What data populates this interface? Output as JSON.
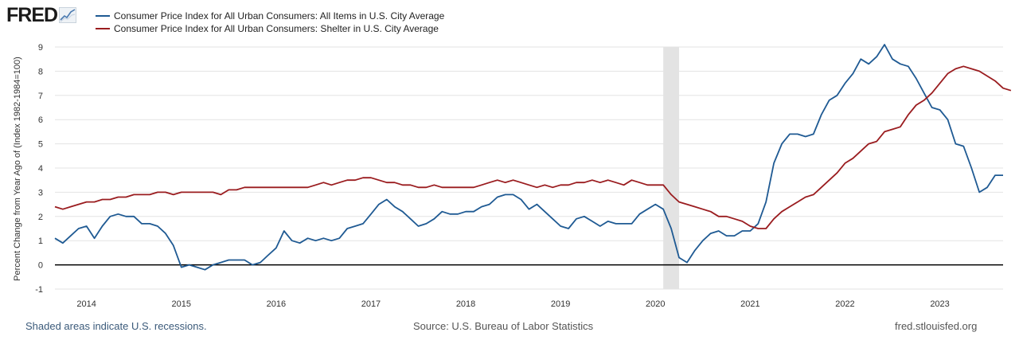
{
  "logo": {
    "text": "FRED"
  },
  "chart_data": {
    "type": "line",
    "title": "",
    "xlabel": "",
    "ylabel": "Percent Change from Year Ago of (Index 1982-1984=100)",
    "ylim": [
      -1,
      9
    ],
    "xlim": [
      2013.667,
      2023.667
    ],
    "yticks": [
      -1,
      0,
      1,
      2,
      3,
      4,
      5,
      6,
      7,
      8,
      9
    ],
    "xticks": [
      2014,
      2015,
      2016,
      2017,
      2018,
      2019,
      2020,
      2021,
      2022,
      2023
    ],
    "xticklabels": [
      "2014",
      "2015",
      "2016",
      "2017",
      "2018",
      "2019",
      "2020",
      "2021",
      "2022",
      "2023"
    ],
    "recession": [
      2020.083,
      2020.25
    ],
    "zero_line": 0,
    "series": [
      {
        "name": "Consumer Price Index for All Urban Consumers: All Items in U.S. City Average",
        "color": "#1f5a93",
        "start": [
          2013,
          9
        ],
        "values": [
          1.1,
          0.9,
          1.2,
          1.5,
          1.6,
          1.1,
          1.6,
          2.0,
          2.1,
          2.0,
          2.0,
          1.7,
          1.7,
          1.6,
          1.3,
          0.8,
          -0.1,
          0.0,
          -0.1,
          -0.2,
          0.0,
          0.1,
          0.2,
          0.2,
          0.2,
          0.0,
          0.1,
          0.4,
          0.7,
          1.4,
          1.0,
          0.9,
          1.1,
          1.0,
          1.1,
          1.0,
          1.1,
          1.5,
          1.6,
          1.7,
          2.1,
          2.5,
          2.7,
          2.4,
          2.2,
          1.9,
          1.6,
          1.7,
          1.9,
          2.2,
          2.1,
          2.1,
          2.2,
          2.2,
          2.4,
          2.5,
          2.8,
          2.9,
          2.9,
          2.7,
          2.3,
          2.5,
          2.2,
          1.9,
          1.6,
          1.5,
          1.9,
          2.0,
          1.8,
          1.6,
          1.8,
          1.7,
          1.7,
          1.7,
          2.1,
          2.3,
          2.5,
          2.3,
          1.5,
          0.3,
          0.1,
          0.6,
          1.0,
          1.3,
          1.4,
          1.2,
          1.2,
          1.4,
          1.4,
          1.7,
          2.6,
          4.2,
          5.0,
          5.4,
          5.4,
          5.3,
          5.4,
          6.2,
          6.8,
          7.0,
          7.5,
          7.9,
          8.5,
          8.3,
          8.6,
          9.1,
          8.5,
          8.3,
          8.2,
          7.7,
          7.1,
          6.5,
          6.4,
          6.0,
          5.0,
          4.9,
          4.0,
          3.0,
          3.2,
          3.7,
          3.7
        ]
      },
      {
        "name": "Consumer Price Index for All Urban Consumers: Shelter in U.S. City Average",
        "color": "#9a1c1f",
        "start": [
          2013,
          9
        ],
        "values": [
          2.4,
          2.3,
          2.4,
          2.5,
          2.6,
          2.6,
          2.7,
          2.7,
          2.8,
          2.8,
          2.9,
          2.9,
          2.9,
          3.0,
          3.0,
          2.9,
          3.0,
          3.0,
          3.0,
          3.0,
          3.0,
          2.9,
          3.1,
          3.1,
          3.2,
          3.2,
          3.2,
          3.2,
          3.2,
          3.2,
          3.2,
          3.2,
          3.2,
          3.3,
          3.4,
          3.3,
          3.4,
          3.5,
          3.5,
          3.6,
          3.6,
          3.5,
          3.4,
          3.4,
          3.3,
          3.3,
          3.2,
          3.2,
          3.3,
          3.2,
          3.2,
          3.2,
          3.2,
          3.2,
          3.3,
          3.4,
          3.5,
          3.4,
          3.5,
          3.4,
          3.3,
          3.2,
          3.3,
          3.2,
          3.3,
          3.3,
          3.4,
          3.4,
          3.5,
          3.4,
          3.5,
          3.4,
          3.3,
          3.5,
          3.4,
          3.3,
          3.3,
          3.3,
          2.9,
          2.6,
          2.5,
          2.4,
          2.3,
          2.2,
          2.0,
          2.0,
          1.9,
          1.8,
          1.6,
          1.5,
          1.5,
          1.9,
          2.2,
          2.4,
          2.6,
          2.8,
          2.9,
          3.2,
          3.5,
          3.8,
          4.2,
          4.4,
          4.7,
          5.0,
          5.1,
          5.5,
          5.6,
          5.7,
          6.2,
          6.6,
          6.8,
          7.1,
          7.5,
          7.9,
          8.1,
          8.2,
          8.1,
          8.0,
          7.8,
          7.6,
          7.3,
          7.2
        ]
      }
    ]
  },
  "footer": {
    "recession_note": "Shaded areas indicate U.S. recessions.",
    "source": "Source: U.S. Bureau of Labor Statistics",
    "site": "fred.stlouisfed.org"
  }
}
